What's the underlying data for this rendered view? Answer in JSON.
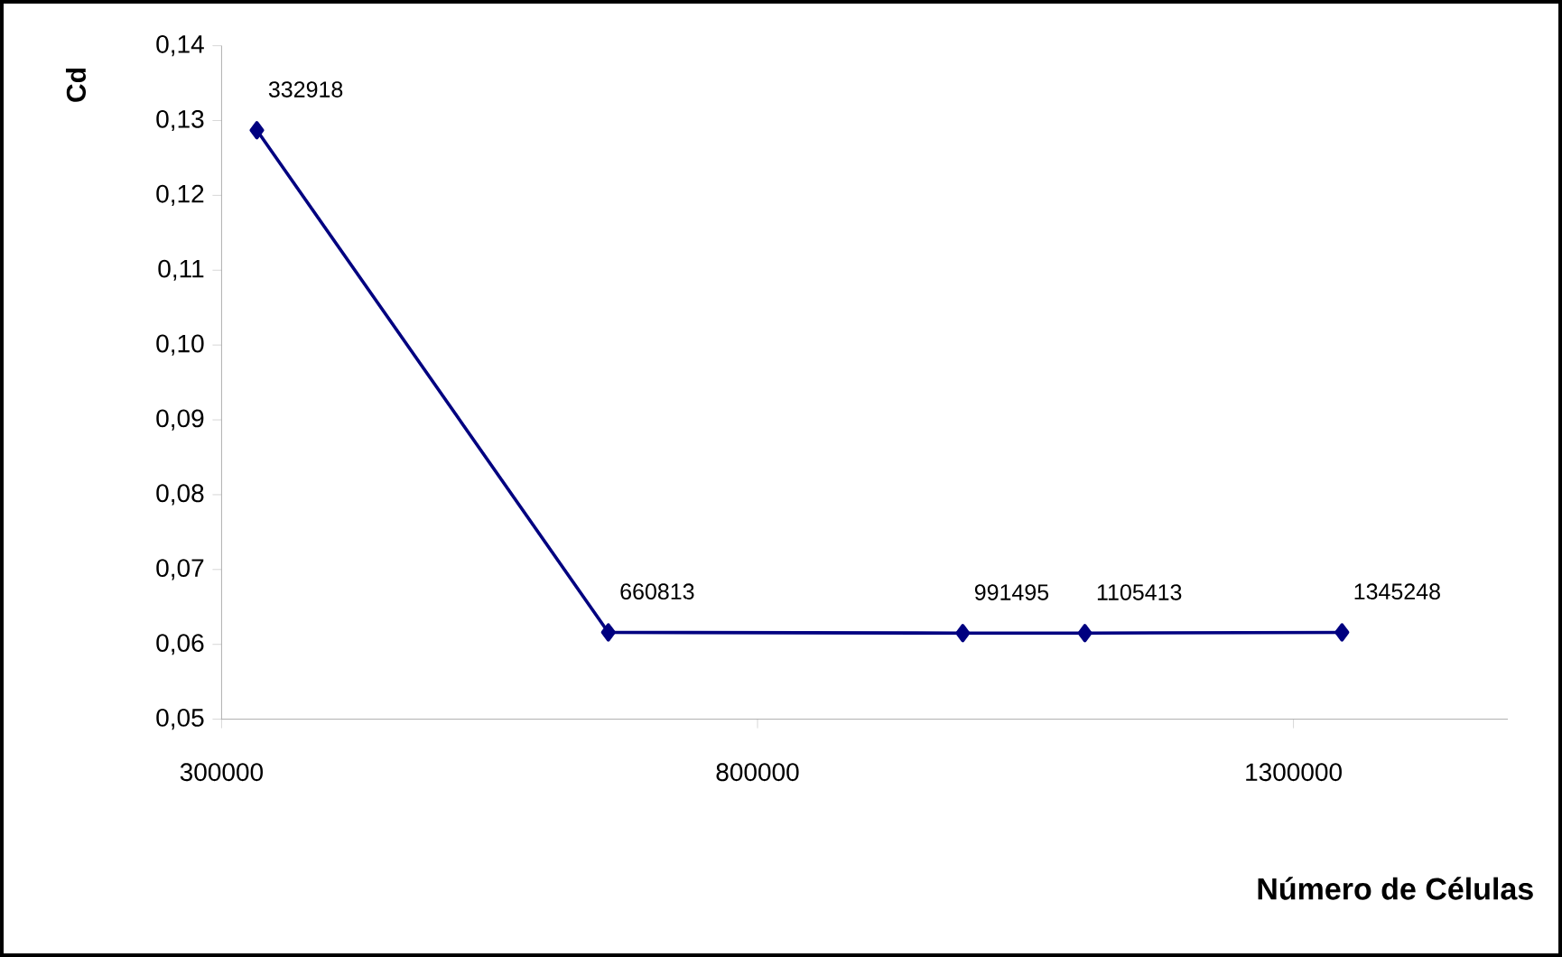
{
  "chart_data": {
    "type": "line",
    "xlabel": "Número de Células",
    "ylabel": "Cd",
    "x": [
      332918,
      660813,
      991495,
      1105413,
      1345248
    ],
    "series": [
      {
        "color": "#000080",
        "values": [
          0.1287,
          0.0616,
          0.0615,
          0.0615,
          0.0616
        ]
      }
    ],
    "xlim": [
      300000,
      1500000
    ],
    "xticks": [
      300000,
      800000,
      1300000
    ],
    "ylim": [
      0.05,
      0.14
    ],
    "yticks": [
      {
        "value": 0.05,
        "label": "0,05"
      },
      {
        "value": 0.06,
        "label": "0,06"
      },
      {
        "value": 0.07,
        "label": "0,07"
      },
      {
        "value": 0.08,
        "label": "0,08"
      },
      {
        "value": 0.09,
        "label": "0,09"
      },
      {
        "value": 0.1,
        "label": "0,10"
      },
      {
        "value": 0.11,
        "label": "0,11"
      },
      {
        "value": 0.12,
        "label": "0,12"
      },
      {
        "value": 0.13,
        "label": "0,13"
      },
      {
        "value": 0.14,
        "label": "0,14"
      }
    ],
    "annotations": [
      {
        "text": "332918",
        "x": 332918,
        "y": 0.1287
      },
      {
        "text": "660813",
        "x": 660813,
        "y": 0.0616
      },
      {
        "text": "991495",
        "x": 991495,
        "y": 0.0615
      },
      {
        "text": "1105413",
        "x": 1105413,
        "y": 0.0615
      },
      {
        "text": "1345248",
        "x": 1345248,
        "y": 0.0616
      }
    ],
    "marker": "diamond",
    "line_style": "solid"
  }
}
